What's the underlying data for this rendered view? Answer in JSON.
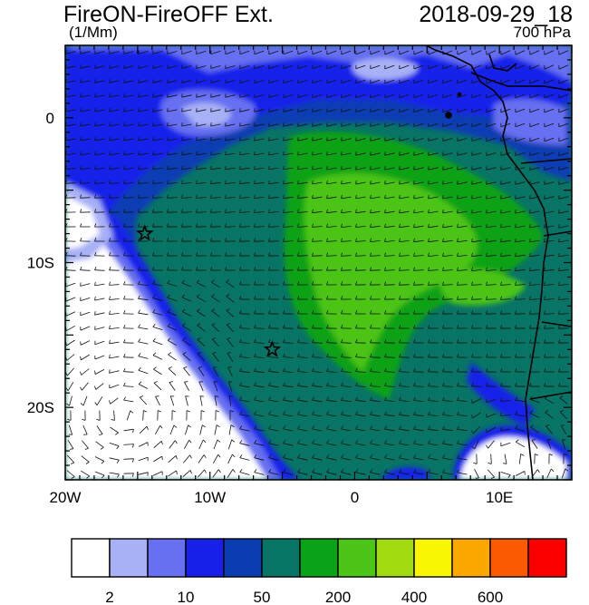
{
  "header": {
    "title": "FireON-FireOFF Ext.",
    "datetime": "2018-09-29_18",
    "units": "(1/Mm)",
    "level": "700 hPa"
  },
  "map": {
    "lon_range": [
      -20,
      15
    ],
    "lat_range": [
      -25,
      5
    ],
    "lon_ticks": [
      {
        "value": -20,
        "label": "20W"
      },
      {
        "value": -10,
        "label": "10W"
      },
      {
        "value": 0,
        "label": "0"
      },
      {
        "value": 10,
        "label": "10E"
      }
    ],
    "lat_ticks": [
      {
        "value": 0,
        "label": "0"
      },
      {
        "value": -10,
        "label": "10S"
      },
      {
        "value": -20,
        "label": "20S"
      }
    ],
    "markers": [
      {
        "name": "star-marker",
        "lon": -14.5,
        "lat": -8.0
      },
      {
        "name": "star-marker",
        "lon": -5.7,
        "lat": -16.0
      }
    ]
  },
  "colorbar": {
    "colors": [
      "#ffffff",
      "#a8b0f6",
      "#6670f0",
      "#1820ea",
      "#0a3cb2",
      "#087466",
      "#0aa218",
      "#4cc418",
      "#a2dc10",
      "#f8f600",
      "#fca800",
      "#fc5a00",
      "#fc0000"
    ],
    "labels": [
      "2",
      "10",
      "50",
      "200",
      "400",
      "600"
    ]
  }
}
